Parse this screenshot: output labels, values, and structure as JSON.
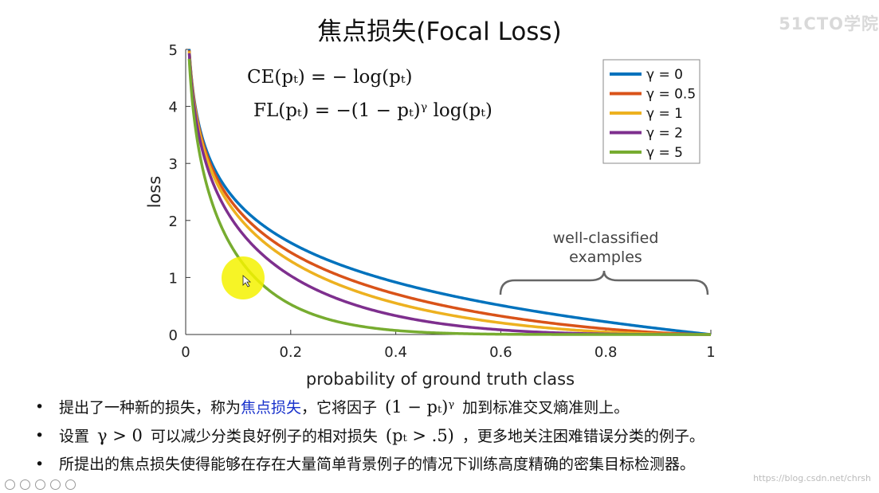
{
  "slide": {
    "title": "焦点损失(Focal Loss)",
    "watermark": "51CTO学院",
    "credit": "https://blog.csdn.net/chrsh"
  },
  "formulas": {
    "ce": "CE(pₜ) = − log(pₜ)",
    "fl": "FL(pₜ) = −(1 − pₜ)ᵞ log(pₜ)"
  },
  "annotation": {
    "line1": "well-classified",
    "line2": "examples"
  },
  "bullets": [
    {
      "pre": "提出了一种新的损失，称为",
      "highlight": "焦点损失",
      "post1": "，它将因子",
      "math": "(1 − pₜ)ᵞ",
      "post2": "加到标准交叉熵准则上。"
    },
    {
      "pre": "设置",
      "math": "γ > 0",
      "mid": "可以减少分类良好例子的相对损失",
      "math2": "(pₜ > .5)",
      "post": "，更多地关注困难错误分类的例子。"
    },
    {
      "text": "所提出的焦点损失使得能够在存在大量简单背景例子的情况下训练高度精确的密集目标检测器。"
    }
  ],
  "colors": {
    "g0": "#0072bd",
    "g05": "#d95319",
    "g1": "#edb120",
    "g2": "#7e2f8e",
    "g5": "#77ac30",
    "cursor_highlight": "#f5f200"
  },
  "chart_data": {
    "type": "line",
    "title": "",
    "xlabel": "probability of ground truth class",
    "ylabel": "loss",
    "xlim": [
      0,
      1
    ],
    "ylim": [
      0,
      5
    ],
    "xticks": [
      0,
      0.2,
      0.4,
      0.6,
      0.8,
      1
    ],
    "xtick_labels": [
      "0",
      "0.2",
      "0.4",
      "0.6",
      "0.8",
      "1"
    ],
    "yticks": [
      0,
      1,
      2,
      3,
      4,
      5
    ],
    "ytick_labels": [
      "0",
      "1",
      "2",
      "3",
      "4",
      "5"
    ],
    "legend_position": "top-right",
    "grid": false,
    "series": [
      {
        "name": "γ = 0",
        "gamma": 0,
        "color": "#0072bd"
      },
      {
        "name": "γ = 0.5",
        "gamma": 0.5,
        "color": "#d95319"
      },
      {
        "name": "γ = 1",
        "gamma": 1,
        "color": "#edb120"
      },
      {
        "name": "γ = 2",
        "gamma": 2,
        "color": "#7e2f8e"
      },
      {
        "name": "γ = 5",
        "gamma": 5,
        "color": "#77ac30"
      }
    ],
    "function": "FL(p) = -(1-p)^γ · log(p)"
  }
}
